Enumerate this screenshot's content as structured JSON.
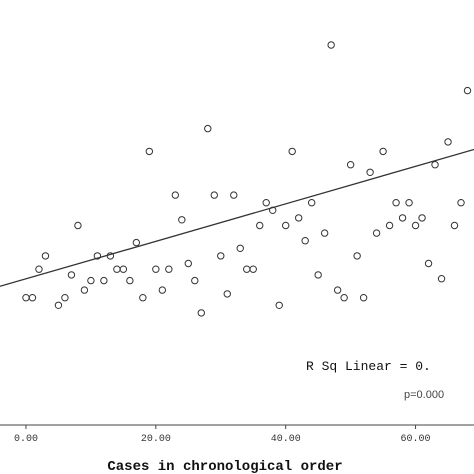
{
  "chart_data": {
    "type": "scatter",
    "title": "",
    "xlabel": "Cases in chronological order",
    "ylabel": "",
    "xlim": [
      -4,
      69
    ],
    "ylim": [
      0,
      1
    ],
    "x_ticks": [
      {
        "value": 0,
        "label": "0.00"
      },
      {
        "value": 20,
        "label": "20.00"
      },
      {
        "value": 40,
        "label": "40.00"
      },
      {
        "value": 60,
        "label": "60.00"
      }
    ],
    "annotations": {
      "r_squared": "R Sq Linear = 0.",
      "p_value": "p=0.000"
    },
    "fit_line": {
      "x": [
        -4,
        69
      ],
      "y": [
        0.365,
        0.725
      ]
    },
    "colors": {
      "background": "#ffffff",
      "marker": "#333333",
      "line": "#333333",
      "axis": "#444444"
    },
    "grid": false,
    "series": [
      {
        "points": [
          {
            "x": 0,
            "y": 0.335
          },
          {
            "x": 1,
            "y": 0.335
          },
          {
            "x": 2,
            "y": 0.41
          },
          {
            "x": 3,
            "y": 0.445
          },
          {
            "x": 5,
            "y": 0.315
          },
          {
            "x": 6,
            "y": 0.335
          },
          {
            "x": 7,
            "y": 0.395
          },
          {
            "x": 8,
            "y": 0.525
          },
          {
            "x": 9,
            "y": 0.355
          },
          {
            "x": 10,
            "y": 0.38
          },
          {
            "x": 11,
            "y": 0.445
          },
          {
            "x": 12,
            "y": 0.38
          },
          {
            "x": 13,
            "y": 0.445
          },
          {
            "x": 14,
            "y": 0.41
          },
          {
            "x": 15,
            "y": 0.41
          },
          {
            "x": 16,
            "y": 0.38
          },
          {
            "x": 17,
            "y": 0.48
          },
          {
            "x": 18,
            "y": 0.335
          },
          {
            "x": 19,
            "y": 0.72
          },
          {
            "x": 20,
            "y": 0.41
          },
          {
            "x": 21,
            "y": 0.355
          },
          {
            "x": 22,
            "y": 0.41
          },
          {
            "x": 23,
            "y": 0.605
          },
          {
            "x": 24,
            "y": 0.54
          },
          {
            "x": 25,
            "y": 0.425
          },
          {
            "x": 26,
            "y": 0.38
          },
          {
            "x": 27,
            "y": 0.295
          },
          {
            "x": 28,
            "y": 0.78
          },
          {
            "x": 29,
            "y": 0.605
          },
          {
            "x": 30,
            "y": 0.445
          },
          {
            "x": 31,
            "y": 0.345
          },
          {
            "x": 32,
            "y": 0.605
          },
          {
            "x": 33,
            "y": 0.465
          },
          {
            "x": 34,
            "y": 0.41
          },
          {
            "x": 35,
            "y": 0.41
          },
          {
            "x": 36,
            "y": 0.525
          },
          {
            "x": 37,
            "y": 0.585
          },
          {
            "x": 38,
            "y": 0.565
          },
          {
            "x": 39,
            "y": 0.315
          },
          {
            "x": 40,
            "y": 0.525
          },
          {
            "x": 41,
            "y": 0.72
          },
          {
            "x": 42,
            "y": 0.545
          },
          {
            "x": 43,
            "y": 0.485
          },
          {
            "x": 44,
            "y": 0.585
          },
          {
            "x": 45,
            "y": 0.395
          },
          {
            "x": 46,
            "y": 0.505
          },
          {
            "x": 47,
            "y": 1.0
          },
          {
            "x": 48,
            "y": 0.355
          },
          {
            "x": 49,
            "y": 0.335
          },
          {
            "x": 50,
            "y": 0.685
          },
          {
            "x": 51,
            "y": 0.445
          },
          {
            "x": 52,
            "y": 0.335
          },
          {
            "x": 53,
            "y": 0.665
          },
          {
            "x": 54,
            "y": 0.505
          },
          {
            "x": 55,
            "y": 0.72
          },
          {
            "x": 56,
            "y": 0.525
          },
          {
            "x": 57,
            "y": 0.585
          },
          {
            "x": 58,
            "y": 0.545
          },
          {
            "x": 59,
            "y": 0.585
          },
          {
            "x": 60,
            "y": 0.525
          },
          {
            "x": 61,
            "y": 0.545
          },
          {
            "x": 62,
            "y": 0.425
          },
          {
            "x": 63,
            "y": 0.685
          },
          {
            "x": 64,
            "y": 0.385
          },
          {
            "x": 65,
            "y": 0.745
          },
          {
            "x": 66,
            "y": 0.525
          },
          {
            "x": 67,
            "y": 0.585
          },
          {
            "x": 68,
            "y": 0.88
          }
        ]
      }
    ]
  }
}
